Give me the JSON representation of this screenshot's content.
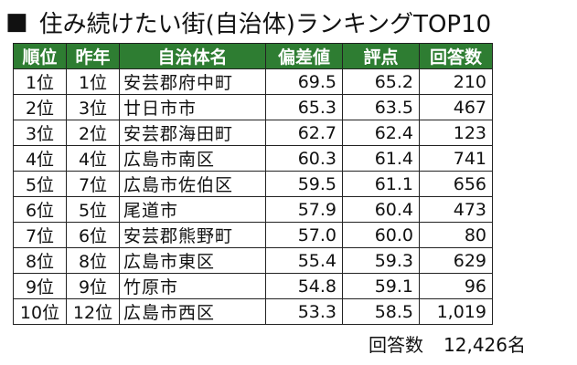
{
  "title": {
    "bullet": "■",
    "text": "住み続けたい街(自治体)ランキングTOP10"
  },
  "table": {
    "headers": [
      "順位",
      "昨年",
      "自治体名",
      "偏差値",
      "評点",
      "回答数"
    ],
    "rows": [
      [
        "1位",
        "1位",
        "安芸郡府中町",
        "69.5",
        "65.2",
        "210"
      ],
      [
        "2位",
        "3位",
        "廿日市市",
        "65.3",
        "63.5",
        "467"
      ],
      [
        "3位",
        "2位",
        "安芸郡海田町",
        "62.7",
        "62.4",
        "123"
      ],
      [
        "4位",
        "4位",
        "広島市南区",
        "60.3",
        "61.4",
        "741"
      ],
      [
        "5位",
        "7位",
        "広島市佐伯区",
        "59.5",
        "61.1",
        "656"
      ],
      [
        "6位",
        "5位",
        "尾道市",
        "57.9",
        "60.4",
        "473"
      ],
      [
        "7位",
        "6位",
        "安芸郡熊野町",
        "57.0",
        "60.0",
        "80"
      ],
      [
        "8位",
        "8位",
        "広島市東区",
        "55.4",
        "59.3",
        "629"
      ],
      [
        "9位",
        "9位",
        "竹原市",
        "54.8",
        "59.1",
        "96"
      ],
      [
        "10位",
        "12位",
        "広島市西区",
        "53.3",
        "58.5",
        "1,019"
      ]
    ]
  },
  "footer": {
    "label": "回答数",
    "value": "12,426名"
  },
  "colors": {
    "header_bg": "#2e7d32",
    "header_text": "#ffffff"
  }
}
